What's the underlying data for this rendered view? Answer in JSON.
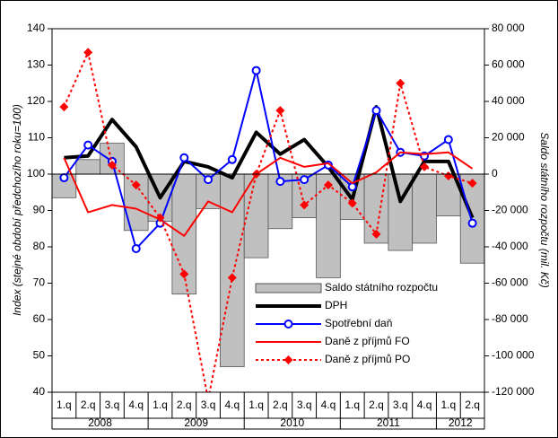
{
  "chart_data": {
    "type": "combo",
    "categories": [
      "1.q",
      "2.q",
      "3.q",
      "4.q",
      "1.q",
      "2.q",
      "3.q",
      "4.q",
      "1.q",
      "2.q",
      "3.q",
      "4.q",
      "1.q",
      "2.q",
      "3.q",
      "4.q",
      "1.q",
      "2.q"
    ],
    "groups": [
      "2008",
      "2009",
      "2010",
      "2011",
      "2012"
    ],
    "y_label": "Index (stejné období předchozího roku=100)",
    "y2_label": "Saldo státního rozpočtu (mil. Kč)",
    "ylim": [
      40,
      140
    ],
    "yticks": [
      40,
      50,
      60,
      70,
      80,
      90,
      100,
      110,
      120,
      130,
      140
    ],
    "y2lim": [
      -120000,
      80000
    ],
    "y2ticks": [
      {
        "value": -120000,
        "label": "-120 000"
      },
      {
        "value": -100000,
        "label": "-100 000"
      },
      {
        "value": -80000,
        "label": "-80 000"
      },
      {
        "value": -60000,
        "label": "-60 000"
      },
      {
        "value": -40000,
        "label": "-40 000"
      },
      {
        "value": -20000,
        "label": "-20 000"
      },
      {
        "value": 0,
        "label": "0"
      },
      {
        "value": 20000,
        "label": "20 000"
      },
      {
        "value": 40000,
        "label": "40 000"
      },
      {
        "value": 60000,
        "label": "60 000"
      },
      {
        "value": 80000,
        "label": "80 000"
      }
    ],
    "legend": "lower right",
    "series": [
      {
        "name": "Saldo státního rozpočtu",
        "type": "bar",
        "axis": "y2",
        "color": "#c0c0c0",
        "values": [
          -13000,
          8000,
          17000,
          -31000,
          -26000,
          -66000,
          -19000,
          -106000,
          -46000,
          -30000,
          -24000,
          -57000,
          -25000,
          -38000,
          -42000,
          -38000,
          -23000,
          -49000
        ]
      },
      {
        "name": "DPH",
        "type": "line",
        "color": "#000000",
        "width": 4,
        "values": [
          104.5,
          105,
          115,
          107.5,
          93.5,
          103.5,
          102,
          99,
          111.5,
          105.5,
          109.5,
          102,
          93,
          118.5,
          92.5,
          103.5,
          103.5,
          88
        ]
      },
      {
        "name": "Spotřební daň",
        "type": "line",
        "color": "#0000ff",
        "width": 2,
        "marker": "circle",
        "values": [
          99,
          108,
          103.5,
          79.5,
          86.5,
          104.5,
          98.5,
          104,
          128.5,
          98,
          98.5,
          102.5,
          96.5,
          117.5,
          106,
          105,
          109.5,
          86.5
        ]
      },
      {
        "name": "Daně z příjmů FO",
        "type": "line",
        "color": "#ff0000",
        "width": 2,
        "values": [
          104.5,
          89.5,
          91.5,
          90.5,
          87.5,
          83,
          92.5,
          89.5,
          100,
          104.5,
          102,
          103,
          97.5,
          100.5,
          106,
          105.5,
          106,
          101.5
        ]
      },
      {
        "name": "Daně z příjmů PO",
        "type": "line",
        "color": "#ff0000",
        "width": 2,
        "dash": true,
        "marker": "diamond",
        "values": [
          118.5,
          133.5,
          102.5,
          97,
          88,
          72.5,
          38,
          71.5,
          100,
          117.5,
          91.5,
          97,
          92,
          83.5,
          125,
          102,
          99.5,
          97.5
        ]
      }
    ]
  }
}
